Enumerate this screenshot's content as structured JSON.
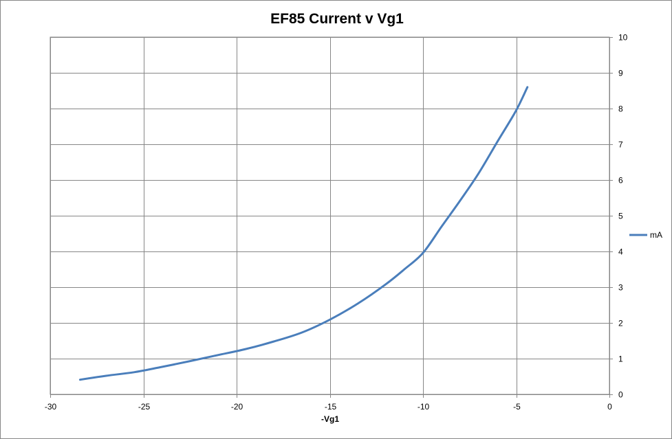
{
  "chart_data": {
    "type": "line",
    "title": "EF85 Current v Vg1",
    "xlabel": "-Vg1",
    "ylabel": "",
    "xlim": [
      -30,
      0
    ],
    "ylim": [
      0,
      10
    ],
    "x_ticks": [
      "-30",
      "-25",
      "-20",
      "-15",
      "-10",
      "-5",
      "0"
    ],
    "y_ticks": [
      "0",
      "1",
      "2",
      "3",
      "4",
      "5",
      "6",
      "7",
      "8",
      "9",
      "10"
    ],
    "y_axis_side": "right",
    "grid": true,
    "legend": "right",
    "series": [
      {
        "name": "mA",
        "color": "#4a7ebb",
        "x": [
          -28.4,
          -27,
          -25.5,
          -24,
          -22.5,
          -21,
          -19.5,
          -18,
          -16.5,
          -15,
          -13.5,
          -12,
          -11,
          -10,
          -9,
          -8,
          -7,
          -6,
          -5,
          -4.4
        ],
        "y": [
          0.41,
          0.52,
          0.62,
          0.77,
          0.93,
          1.1,
          1.27,
          1.48,
          1.73,
          2.09,
          2.54,
          3.08,
          3.5,
          3.96,
          4.7,
          5.43,
          6.2,
          7.08,
          7.95,
          8.6
        ]
      }
    ]
  }
}
